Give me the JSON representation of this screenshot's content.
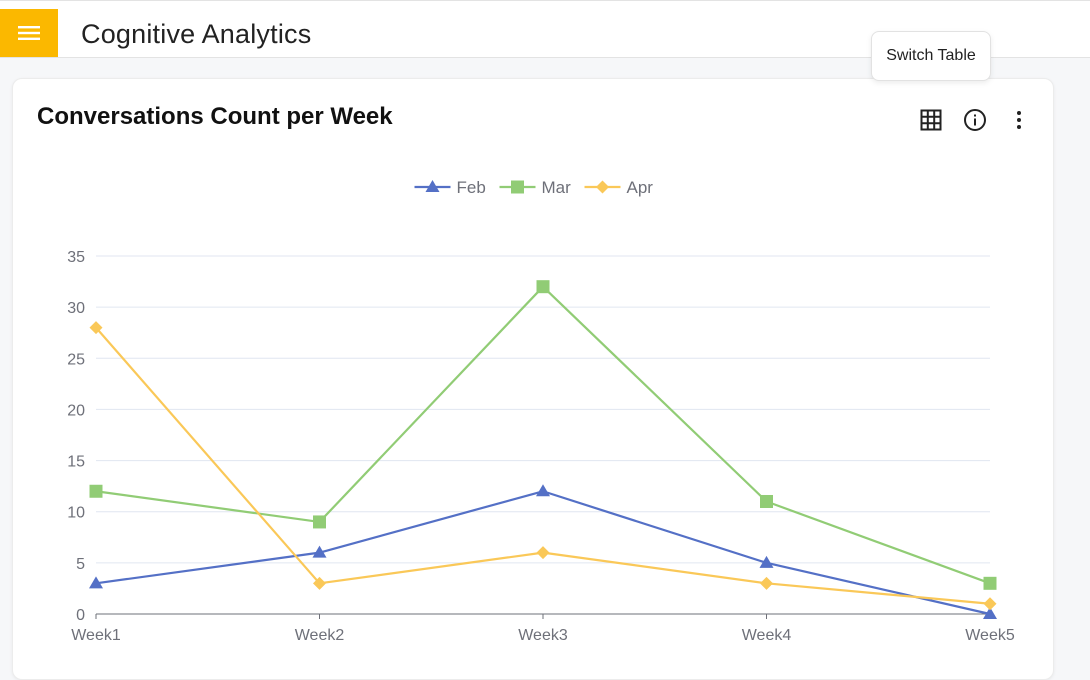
{
  "header": {
    "title": "Cognitive Analytics",
    "menu_icon": "hamburger-menu-icon",
    "accent_color": "#fbb800"
  },
  "tooltip": {
    "text": "Switch Table"
  },
  "card": {
    "title": "Conversations Count per Week",
    "actions": [
      {
        "name": "switch-table-button",
        "icon": "table-grid-icon"
      },
      {
        "name": "info-button",
        "icon": "info-icon"
      },
      {
        "name": "more-options-button",
        "icon": "more-vertical-icon"
      }
    ]
  },
  "chart_data": {
    "type": "line",
    "title": "Conversations Count per Week",
    "categories": [
      "Week1",
      "Week2",
      "Week3",
      "Week4",
      "Week5"
    ],
    "series": [
      {
        "name": "Feb",
        "color": "#5470c6",
        "marker": "triangle",
        "values": [
          3,
          6,
          12,
          5,
          0
        ]
      },
      {
        "name": "Mar",
        "color": "#91cc75",
        "marker": "square",
        "values": [
          12,
          9,
          32,
          11,
          3
        ]
      },
      {
        "name": "Apr",
        "color": "#fac858",
        "marker": "diamond",
        "values": [
          28,
          3,
          6,
          3,
          1
        ]
      }
    ],
    "ylim": [
      0,
      35
    ],
    "yticks": [
      0,
      5,
      10,
      15,
      20,
      25,
      30,
      35
    ],
    "grid": true,
    "legend": "top-center",
    "xlabel": "",
    "ylabel": ""
  }
}
